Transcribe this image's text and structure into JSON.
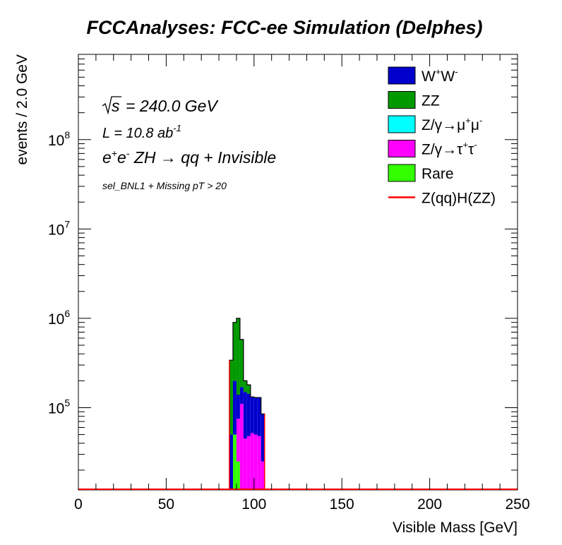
{
  "chart_data": {
    "type": "bar",
    "title": "FCCAnalyses: FCC-ee Simulation (Delphes)",
    "xlabel": "Visible Mass [GeV]",
    "ylabel": "events / 2.0 GeV",
    "xlim": [
      0,
      250
    ],
    "ylim": [
      12000,
      900000000
    ],
    "y_scale": "log",
    "bin_width": 2.0,
    "stacked": true,
    "legend_position": "top-right",
    "x_ticks": [
      "0",
      "50",
      "100",
      "150",
      "200",
      "250"
    ],
    "y_ticks": [
      {
        "base": "10",
        "exp": "5",
        "value": 100000
      },
      {
        "base": "10",
        "exp": "6",
        "value": 1000000
      },
      {
        "base": "10",
        "exp": "7",
        "value": 10000000
      },
      {
        "base": "10",
        "exp": "8",
        "value": 100000000
      }
    ],
    "annotations": {
      "sqrt_s": "= 240.0 GeV",
      "lumi": "L = 10.8 ab",
      "lumi_exp": "-1",
      "process": "ZH → qq + Invisible",
      "selection": "sel_BNL1 + Missing pT > 20"
    },
    "bins_low_edge": [
      86,
      88,
      90,
      92,
      94,
      96,
      98,
      100,
      102,
      104
    ],
    "series": [
      {
        "name": "Rare",
        "label_html": "Rare",
        "color": "#33ff00",
        "values": [
          0,
          50000,
          25000,
          0,
          0,
          0,
          0,
          0,
          0,
          0
        ]
      },
      {
        "name": "Z/γ→τ⁺τ⁻",
        "label_main": "Z/γ→τ",
        "sup1": "+",
        "mid": "τ",
        "sup2": "-",
        "color": "#ff00ff",
        "values": [
          0,
          0,
          50000,
          110000,
          45000,
          48000,
          52000,
          50000,
          48000,
          25000
        ]
      },
      {
        "name": "Z/γ→μ⁺μ⁻",
        "label_main": "Z/γ→μ",
        "sup1": "+",
        "mid": "μ",
        "sup2": "-",
        "color": "#00ffff",
        "values": [
          0,
          0,
          0,
          0,
          0,
          0,
          0,
          0,
          0,
          0
        ]
      },
      {
        "name": "W⁺W⁻",
        "label_main": "W",
        "sup1": "+",
        "mid": "W",
        "sup2": "-",
        "color": "#0000cc",
        "values": [
          50000,
          150000,
          65000,
          60000,
          105000,
          95000,
          80000,
          80000,
          82000,
          60000
        ]
      },
      {
        "name": "ZZ",
        "label_html": "ZZ",
        "color": "#009900",
        "values": [
          290000,
          700000,
          860000,
          410000,
          50000,
          37000,
          0,
          0,
          0,
          0
        ]
      }
    ],
    "signal": {
      "name": "Z(qq)H(ZZ)",
      "label_html": "Z(qq)H(ZZ)",
      "color": "#ff0000",
      "values": [
        0,
        0,
        0,
        0,
        0,
        0,
        0,
        0,
        0,
        0
      ]
    }
  }
}
